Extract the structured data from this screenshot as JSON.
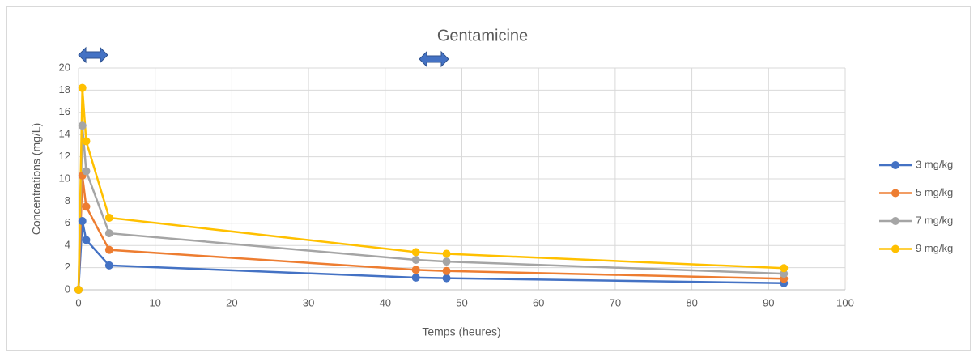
{
  "chart_data": {
    "type": "line",
    "title": "Gentamicine",
    "x_label": "Temps (heures)",
    "y_label": "Concentrations (mg/L)",
    "x": [
      0,
      0.5,
      1,
      4,
      44,
      48,
      92
    ],
    "series": [
      {
        "name": "3 mg/kg",
        "color": "#4472c4",
        "values": [
          0,
          6.2,
          4.5,
          2.2,
          1.1,
          1.05,
          0.6
        ]
      },
      {
        "name": "5 mg/kg",
        "color": "#ed7d31",
        "values": [
          0,
          10.3,
          7.5,
          3.6,
          1.8,
          1.7,
          1.0
        ]
      },
      {
        "name": "7 mg/kg",
        "color": "#a5a5a5",
        "values": [
          0,
          14.8,
          10.7,
          5.1,
          2.7,
          2.55,
          1.45
        ]
      },
      {
        "name": "9 mg/kg",
        "color": "#ffc000",
        "values": [
          0,
          18.2,
          13.4,
          6.5,
          3.4,
          3.25,
          1.95
        ]
      }
    ],
    "xlim": [
      0,
      100
    ],
    "xticks": [
      0,
      10,
      20,
      30,
      40,
      50,
      60,
      70,
      80,
      90,
      100
    ],
    "ylim": [
      0,
      20
    ],
    "yticks": [
      0,
      2,
      4,
      6,
      8,
      10,
      12,
      14,
      16,
      18,
      20
    ],
    "grid": true,
    "legend": "right"
  }
}
